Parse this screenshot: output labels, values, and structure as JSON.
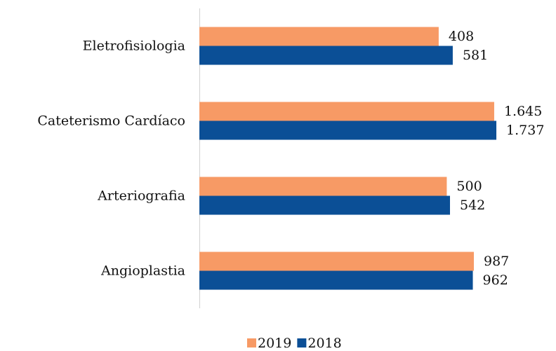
{
  "chart_data": {
    "type": "bar",
    "orientation": "horizontal",
    "log_scale": true,
    "categories": [
      "Eletrofisiologia",
      "Cateterismo Cardíaco",
      "Arteriografia",
      "Angioplastia"
    ],
    "series": [
      {
        "name": "2019",
        "color": "#f79a65",
        "values": [
          408,
          1645,
          500,
          987
        ],
        "value_labels": [
          "408",
          "1.645",
          "500",
          "987"
        ]
      },
      {
        "name": "2018",
        "color": "#0b4f96",
        "values": [
          581,
          1737,
          542,
          962
        ],
        "value_labels": [
          "581",
          "1.737",
          "542",
          "962"
        ]
      }
    ],
    "xlim": [
      1,
      5000
    ],
    "legend": "bottom"
  }
}
